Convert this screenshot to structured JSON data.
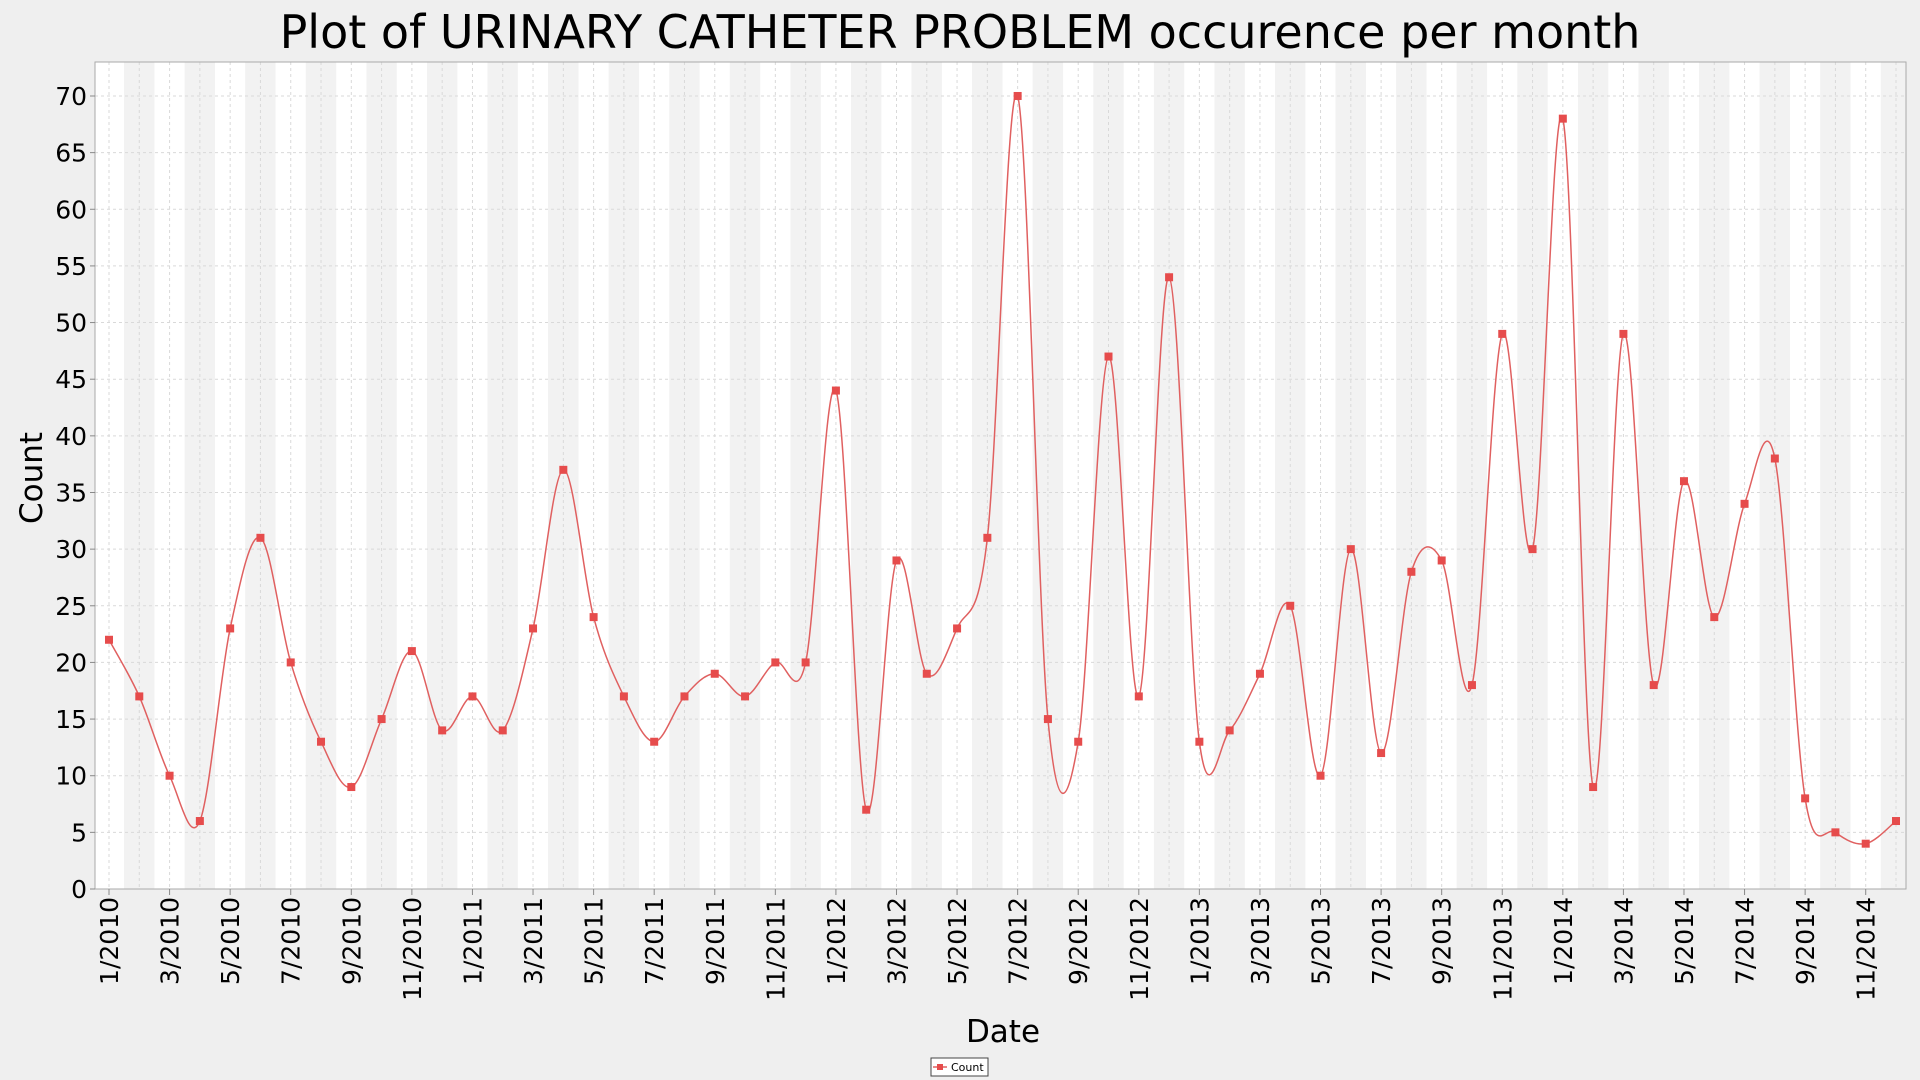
{
  "colors": {
    "background": "#efefef",
    "plot_band_light": "#ffffff",
    "plot_band_dark": "#f2f2f2",
    "gridline": "#d9d9d9",
    "series": "#e06060",
    "marker": "#e64c4c",
    "axis": "#888888"
  },
  "chart_data": {
    "type": "line",
    "title": "Plot of URINARY CATHETER PROBLEM occurence per month",
    "xlabel": "Date",
    "ylabel": "Count",
    "ylim": [
      0,
      73
    ],
    "yticks": [
      0,
      5,
      10,
      15,
      20,
      25,
      30,
      35,
      40,
      45,
      50,
      55,
      60,
      65,
      70
    ],
    "x_tick_labels": [
      "1/2010",
      "3/2010",
      "5/2010",
      "7/2010",
      "9/2010",
      "11/2010",
      "1/2011",
      "3/2011",
      "5/2011",
      "7/2011",
      "9/2011",
      "11/2011",
      "1/2012",
      "3/2012",
      "5/2012",
      "7/2012",
      "9/2012",
      "11/2012",
      "1/2013",
      "3/2013",
      "5/2013",
      "7/2013",
      "9/2013",
      "11/2013",
      "1/2014",
      "3/2014",
      "5/2014",
      "7/2014",
      "9/2014",
      "11/2014"
    ],
    "grid": true,
    "legend_position": "bottom-center",
    "x": [
      "1/2010",
      "2/2010",
      "3/2010",
      "4/2010",
      "5/2010",
      "6/2010",
      "7/2010",
      "8/2010",
      "9/2010",
      "10/2010",
      "11/2010",
      "12/2010",
      "1/2011",
      "2/2011",
      "3/2011",
      "4/2011",
      "5/2011",
      "6/2011",
      "7/2011",
      "8/2011",
      "9/2011",
      "10/2011",
      "11/2011",
      "12/2011",
      "1/2012",
      "2/2012",
      "3/2012",
      "4/2012",
      "5/2012",
      "6/2012",
      "7/2012",
      "8/2012",
      "9/2012",
      "10/2012",
      "11/2012",
      "12/2012",
      "1/2013",
      "2/2013",
      "3/2013",
      "4/2013",
      "5/2013",
      "6/2013",
      "7/2013",
      "8/2013",
      "9/2013",
      "10/2013",
      "11/2013",
      "12/2013",
      "1/2014",
      "2/2014",
      "3/2014",
      "4/2014",
      "5/2014",
      "6/2014",
      "7/2014",
      "8/2014",
      "9/2014",
      "10/2014",
      "11/2014",
      "12/2014"
    ],
    "series": [
      {
        "name": "Count",
        "values": [
          22,
          17,
          10,
          6,
          23,
          31,
          20,
          13,
          9,
          15,
          21,
          14,
          17,
          14,
          23,
          37,
          24,
          17,
          13,
          17,
          19,
          17,
          20,
          20,
          44,
          7,
          29,
          19,
          23,
          31,
          70,
          15,
          13,
          47,
          17,
          54,
          13,
          14,
          19,
          25,
          10,
          30,
          12,
          28,
          29,
          18,
          49,
          30,
          68,
          9,
          49,
          18,
          36,
          24,
          34,
          38,
          8,
          5,
          4,
          6
        ]
      }
    ]
  }
}
